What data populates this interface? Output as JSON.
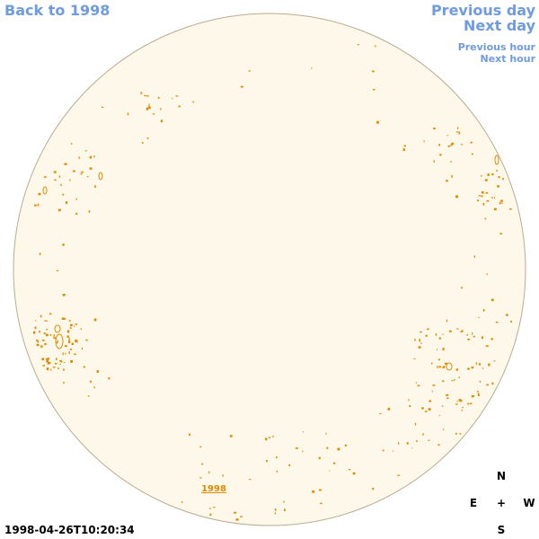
{
  "nav": {
    "back": "Back to 1998",
    "previous_day": "Previous day",
    "next_day": "Next day",
    "previous_hour": "Previous hour",
    "next_hour": "Next hour"
  },
  "timestamp": "1998-04-26T10:20:34",
  "disk_label": "1998",
  "compass": {
    "north": "N",
    "east": "E",
    "center": "+",
    "west": "W",
    "south": "S"
  }
}
